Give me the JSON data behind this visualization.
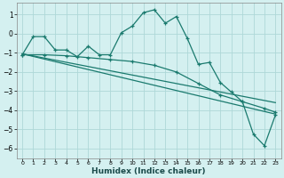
{
  "xlabel": "Humidex (Indice chaleur)",
  "bg_color": "#d4f0f0",
  "grid_color": "#aed8d8",
  "line_color": "#1a7a6e",
  "xlim": [
    -0.5,
    23.5
  ],
  "ylim": [
    -6.5,
    1.6
  ],
  "yticks": [
    1,
    0,
    -1,
    -2,
    -3,
    -4,
    -5,
    -6
  ],
  "xticks": [
    0,
    1,
    2,
    3,
    4,
    5,
    6,
    7,
    8,
    9,
    10,
    11,
    12,
    13,
    14,
    15,
    16,
    17,
    18,
    19,
    20,
    21,
    22,
    23
  ],
  "curve1_x": [
    0,
    1,
    2,
    3,
    4,
    5,
    6,
    7,
    8,
    9,
    10,
    11,
    12,
    13,
    14,
    15,
    16,
    17,
    18,
    19,
    20,
    21,
    22,
    23
  ],
  "curve1_y": [
    -1.1,
    -0.15,
    -0.15,
    -0.85,
    -0.85,
    -1.2,
    -0.65,
    -1.1,
    -1.1,
    0.05,
    0.4,
    1.1,
    1.25,
    0.55,
    0.9,
    -0.25,
    -1.6,
    -1.5,
    -2.55,
    -3.05,
    -3.55,
    -5.25,
    -5.85,
    -4.25
  ],
  "curve2_x": [
    0,
    2,
    4,
    6,
    8,
    10,
    12,
    14,
    16,
    18,
    20,
    22,
    23
  ],
  "curve2_y": [
    -1.1,
    -1.1,
    -1.15,
    -1.25,
    -1.35,
    -1.45,
    -1.65,
    -2.0,
    -2.6,
    -3.2,
    -3.55,
    -3.9,
    -4.1
  ],
  "curve3_x": [
    0,
    23
  ],
  "curve3_y": [
    -1.05,
    -3.6
  ],
  "curve4_x": [
    0,
    23
  ],
  "curve4_y": [
    -1.05,
    -4.2
  ]
}
